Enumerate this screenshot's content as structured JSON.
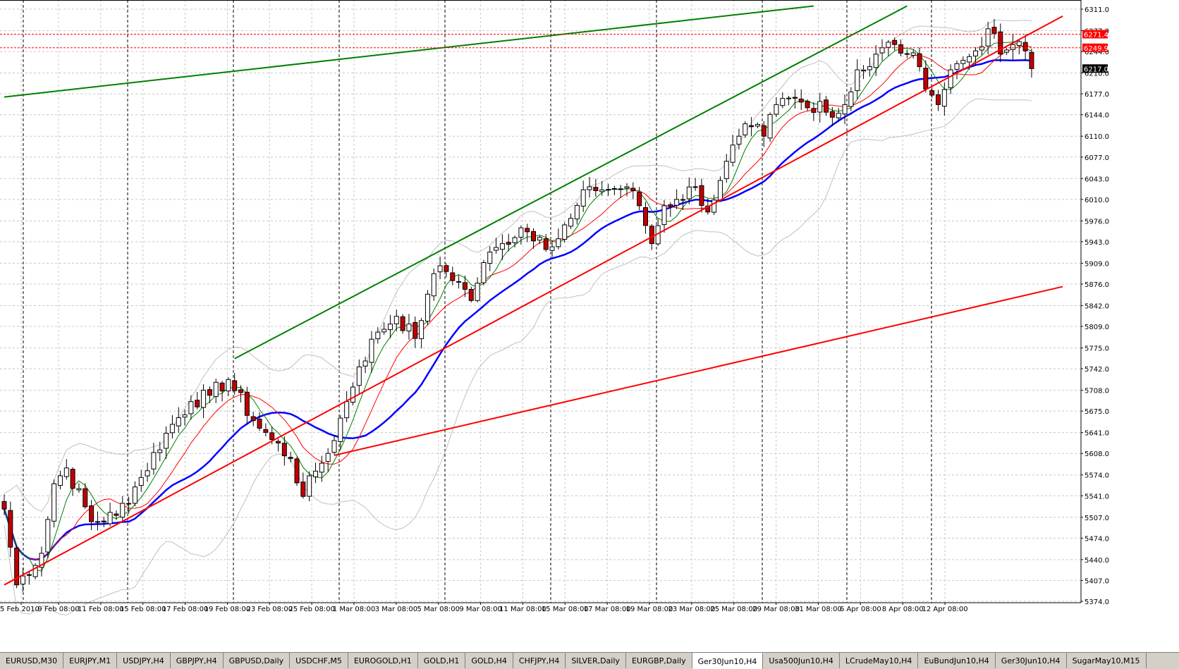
{
  "chart_data": {
    "type": "candlestick",
    "symbol": "Ger30Jun10,H4",
    "y_axis": {
      "ticks": [
        6311.0,
        6277.0,
        6244.0,
        6210.0,
        6177.0,
        6144.0,
        6110.0,
        6077.0,
        6043.0,
        6010.0,
        5976.0,
        5943.0,
        5909.0,
        5876.0,
        5842.0,
        5809.0,
        5775.0,
        5742.0,
        5708.0,
        5675.0,
        5641.0,
        5608.0,
        5574.0,
        5541.0,
        5507.0,
        5474.0,
        5440.0,
        5407.0,
        5374.0
      ],
      "price_labels": [
        {
          "value": 6271.4,
          "text": "6271.4",
          "color": "#ff0000"
        },
        {
          "value": 6249.9,
          "text": "6249.9",
          "color": "#ff0000"
        },
        {
          "value": 6217.0,
          "text": "6217.0",
          "color": "#000000"
        }
      ]
    },
    "x_axis": {
      "ticks": [
        "5 Feb 2010",
        "9 Feb 08:00",
        "11 Feb 08:00",
        "15 Feb 08:00",
        "17 Feb 08:00",
        "19 Feb 08:00",
        "23 Feb 08:00",
        "25 Feb 08:00",
        "1 Mar 08:00",
        "3 Mar 08:00",
        "5 Mar 08:00",
        "9 Mar 08:00",
        "11 Mar 08:00",
        "15 Mar 08:00",
        "17 Mar 08:00",
        "19 Mar 08:00",
        "23 Mar 08:00",
        "25 Mar 08:00",
        "29 Mar 08:00",
        "31 Mar 08:00",
        "6 Apr 08:00",
        "8 Apr 08:00",
        "12 Apr 08:00"
      ]
    },
    "horizontal_lines": [
      {
        "value": 6271.4,
        "color": "#ff0000",
        "style": "dashed"
      },
      {
        "value": 6249.9,
        "color": "#ff0000",
        "style": "dashed"
      }
    ],
    "trend_lines": [
      {
        "color": "#ff0000",
        "from": {
          "bar": 0,
          "price": 5400
        },
        "to": {
          "bar": 170,
          "price": 6300
        }
      },
      {
        "color": "#ff0000",
        "from": {
          "bar": 53,
          "price": 5605
        },
        "to": {
          "bar": 170,
          "price": 5872
        }
      },
      {
        "color": "#008000",
        "from": {
          "bar": 0,
          "price": 6172
        },
        "to": {
          "bar": 130,
          "price": 6316
        }
      },
      {
        "color": "#008000",
        "from": {
          "bar": 37,
          "price": 5758
        },
        "to": {
          "bar": 145,
          "price": 6316
        }
      }
    ],
    "indicators": [
      {
        "kind": "bollinger_bands",
        "color": "#c0c0c0"
      },
      {
        "kind": "moving_average",
        "color": "#0000ff"
      },
      {
        "kind": "moving_average",
        "color": "#ff0000"
      },
      {
        "kind": "moving_average",
        "color": "#008000"
      }
    ],
    "candle_colors": {
      "up": "#ffffff",
      "down": "#c00000",
      "outline": "#000000"
    },
    "grid": true,
    "anchors": [
      {
        "bar": 0,
        "close": 5520
      },
      {
        "bar": 2,
        "close": 5400
      },
      {
        "bar": 6,
        "close": 5450
      },
      {
        "bar": 8,
        "close": 5560
      },
      {
        "bar": 10,
        "close": 5585
      },
      {
        "bar": 14,
        "close": 5500
      },
      {
        "bar": 18,
        "close": 5510
      },
      {
        "bar": 22,
        "close": 5570
      },
      {
        "bar": 26,
        "close": 5640
      },
      {
        "bar": 30,
        "close": 5690
      },
      {
        "bar": 33,
        "close": 5700
      },
      {
        "bar": 36,
        "close": 5725
      },
      {
        "bar": 40,
        "close": 5660
      },
      {
        "bar": 43,
        "close": 5630
      },
      {
        "bar": 46,
        "close": 5600
      },
      {
        "bar": 48,
        "close": 5540
      },
      {
        "bar": 50,
        "close": 5580
      },
      {
        "bar": 52,
        "close": 5608
      },
      {
        "bar": 55,
        "close": 5690
      },
      {
        "bar": 57,
        "close": 5745
      },
      {
        "bar": 60,
        "close": 5800
      },
      {
        "bar": 63,
        "close": 5825
      },
      {
        "bar": 66,
        "close": 5790
      },
      {
        "bar": 68,
        "close": 5860
      },
      {
        "bar": 70,
        "close": 5905
      },
      {
        "bar": 73,
        "close": 5880
      },
      {
        "bar": 75,
        "close": 5850
      },
      {
        "bar": 77,
        "close": 5910
      },
      {
        "bar": 80,
        "close": 5940
      },
      {
        "bar": 83,
        "close": 5965
      },
      {
        "bar": 86,
        "close": 5950
      },
      {
        "bar": 88,
        "close": 5935
      },
      {
        "bar": 91,
        "close": 5980
      },
      {
        "bar": 94,
        "close": 6030
      },
      {
        "bar": 97,
        "close": 6025
      },
      {
        "bar": 100,
        "close": 6030
      },
      {
        "bar": 102,
        "close": 6000
      },
      {
        "bar": 104,
        "close": 5940
      },
      {
        "bar": 106,
        "close": 6000
      },
      {
        "bar": 108,
        "close": 6010
      },
      {
        "bar": 111,
        "close": 6030
      },
      {
        "bar": 113,
        "close": 5990
      },
      {
        "bar": 115,
        "close": 6040
      },
      {
        "bar": 118,
        "close": 6110
      },
      {
        "bar": 120,
        "close": 6125
      },
      {
        "bar": 122,
        "close": 6110
      },
      {
        "bar": 124,
        "close": 6160
      },
      {
        "bar": 127,
        "close": 6170
      },
      {
        "bar": 129,
        "close": 6155
      },
      {
        "bar": 131,
        "close": 6165
      },
      {
        "bar": 133,
        "close": 6140
      },
      {
        "bar": 135,
        "close": 6160
      },
      {
        "bar": 137,
        "close": 6215
      },
      {
        "bar": 139,
        "close": 6220
      },
      {
        "bar": 141,
        "close": 6250
      },
      {
        "bar": 143,
        "close": 6255
      },
      {
        "bar": 145,
        "close": 6240
      },
      {
        "bar": 147,
        "close": 6220
      },
      {
        "bar": 149,
        "close": 6175
      },
      {
        "bar": 150,
        "close": 6160
      },
      {
        "bar": 152,
        "close": 6215
      },
      {
        "bar": 154,
        "close": 6230
      },
      {
        "bar": 156,
        "close": 6245
      },
      {
        "bar": 158,
        "close": 6280
      },
      {
        "bar": 160,
        "close": 6240
      },
      {
        "bar": 162,
        "close": 6255
      },
      {
        "bar": 164,
        "close": 6245
      },
      {
        "bar": 165,
        "close": 6217
      }
    ]
  },
  "tabs": [
    {
      "label": "EURUSD,M30",
      "active": false
    },
    {
      "label": "EURJPY,M1",
      "active": false
    },
    {
      "label": "USDJPY,H4",
      "active": false
    },
    {
      "label": "GBPJPY,H4",
      "active": false
    },
    {
      "label": "GBPUSD,Daily",
      "active": false
    },
    {
      "label": "USDCHF,M5",
      "active": false
    },
    {
      "label": "EUROGOLD,H1",
      "active": false
    },
    {
      "label": "GOLD,H1",
      "active": false
    },
    {
      "label": "GOLD,H4",
      "active": false
    },
    {
      "label": "CHFJPY,H4",
      "active": false
    },
    {
      "label": "SILVER,Daily",
      "active": false
    },
    {
      "label": "EURGBP,Daily",
      "active": false
    },
    {
      "label": "Ger30Jun10,H4",
      "active": true
    },
    {
      "label": "Usa500Jun10,H4",
      "active": false
    },
    {
      "label": "LCrudeMay10,H4",
      "active": false
    },
    {
      "label": "EuBundJun10,H4",
      "active": false
    },
    {
      "label": "Ger30Jun10,H4",
      "active": false
    },
    {
      "label": "SugarMay10,M15",
      "active": false
    }
  ]
}
